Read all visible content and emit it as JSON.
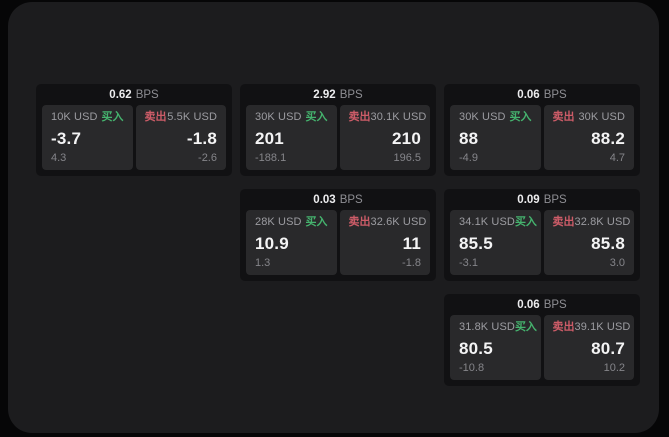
{
  "labels": {
    "bps_suffix": "BPS",
    "buy": "买入",
    "sell": "卖出"
  },
  "colors": {
    "buy_green": "#45b36e",
    "sell_red": "#cd5c68",
    "page_bg": "#1c1c1e",
    "card_bg": "#111113",
    "tile_bg": "#29292b",
    "outside_bg": "#060607"
  },
  "cards": [
    {
      "bps": "0.62",
      "row": 1,
      "col": 1,
      "buy": {
        "amount": "10K USD",
        "value": "-3.7",
        "sub": "4.3"
      },
      "sell": {
        "amount": "5.5K USD",
        "value": "-1.8",
        "sub": "-2.6"
      }
    },
    {
      "bps": "2.92",
      "row": 1,
      "col": 2,
      "buy": {
        "amount": "30K USD",
        "value": "201",
        "sub": "-188.1"
      },
      "sell": {
        "amount": "30.1K USD",
        "value": "210",
        "sub": "196.5"
      }
    },
    {
      "bps": "0.06",
      "row": 1,
      "col": 3,
      "buy": {
        "amount": "30K USD",
        "value": "88",
        "sub": "-4.9"
      },
      "sell": {
        "amount": "30K USD",
        "value": "88.2",
        "sub": "4.7"
      }
    },
    {
      "bps": "0.03",
      "row": 2,
      "col": 2,
      "buy": {
        "amount": "28K USD",
        "value": "10.9",
        "sub": "1.3"
      },
      "sell": {
        "amount": "32.6K USD",
        "value": "11",
        "sub": "-1.8"
      }
    },
    {
      "bps": "0.09",
      "row": 2,
      "col": 3,
      "buy": {
        "amount": "34.1K USD",
        "value": "85.5",
        "sub": "-3.1"
      },
      "sell": {
        "amount": "32.8K USD",
        "value": "85.8",
        "sub": "3.0"
      }
    },
    {
      "bps": "0.06",
      "row": 3,
      "col": 3,
      "buy": {
        "amount": "31.8K USD",
        "value": "80.5",
        "sub": "-10.8"
      },
      "sell": {
        "amount": "39.1K USD",
        "value": "80.7",
        "sub": "10.2"
      }
    }
  ]
}
